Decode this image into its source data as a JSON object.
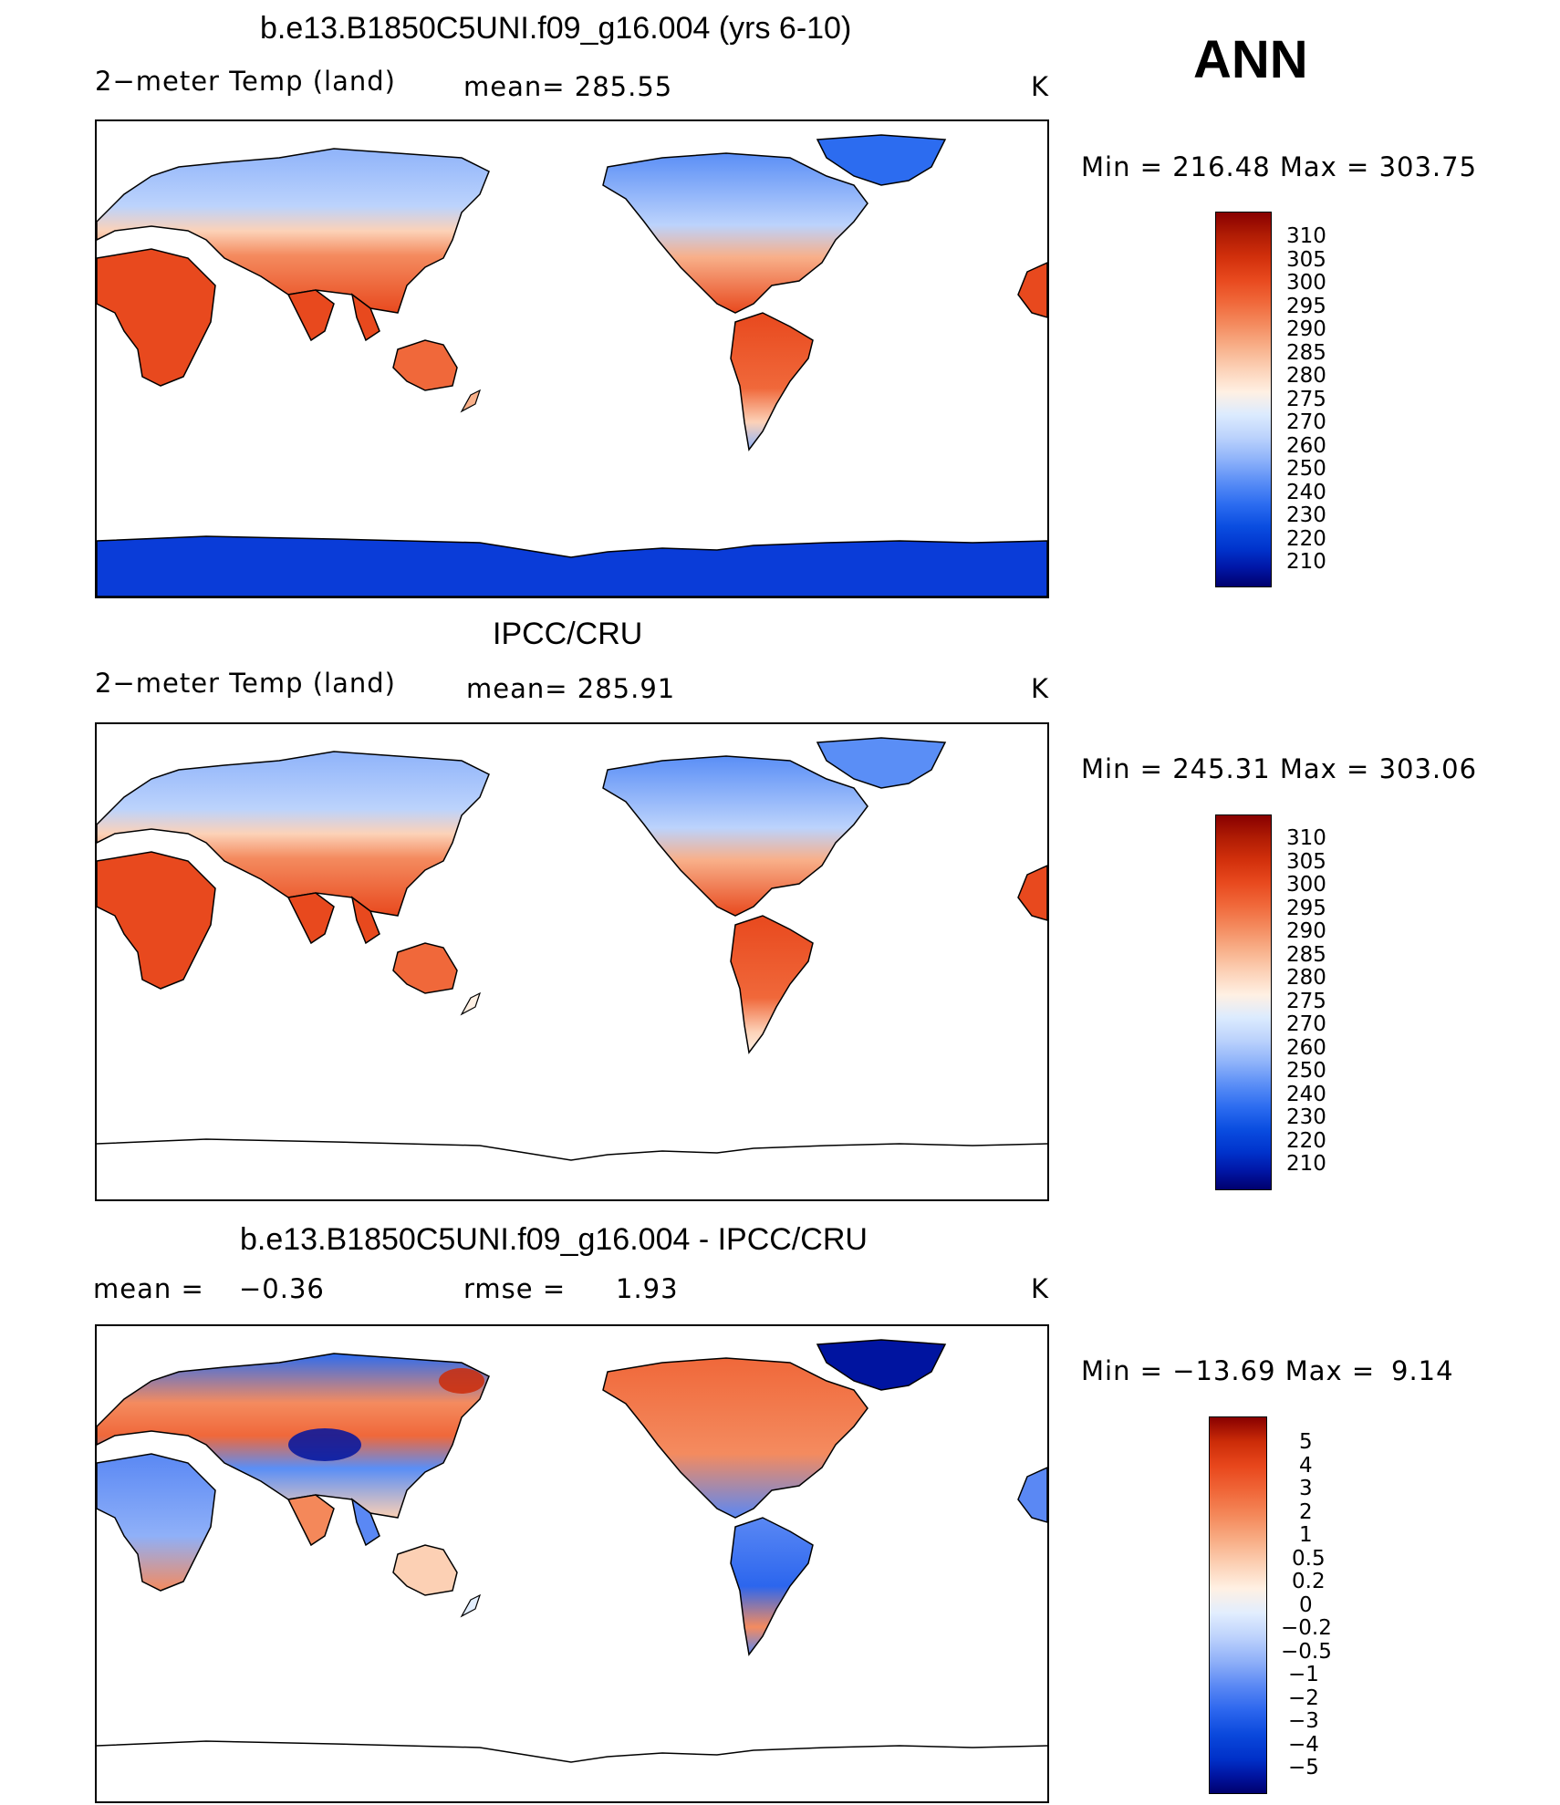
{
  "season": "ANN",
  "units": "K",
  "colors": {
    "abs_scale": [
      "#00006e",
      "#0016a6",
      "#0033cc",
      "#0a4de0",
      "#2c6cf0",
      "#5a8ef6",
      "#8fb3fa",
      "#bcd3fc",
      "#dcebfe",
      "#fff0e3",
      "#fcd2b8",
      "#f8b08a",
      "#f48b5f",
      "#f0683a",
      "#e8491e",
      "#d2300c",
      "#b01c04",
      "#880000"
    ],
    "diff_scale": [
      "#00006e",
      "#0014a0",
      "#0030c8",
      "#0a48dc",
      "#2c66ee",
      "#5a88f4",
      "#8fb0f8",
      "#bdd2fc",
      "#e2eefe",
      "#fff0e3",
      "#fcd0b4",
      "#f8ac84",
      "#f4885a",
      "#f06638",
      "#e8471c",
      "#cc2c08",
      "#880000"
    ],
    "land_outline": "#000000",
    "antarctica": "#0a3cd8"
  },
  "panels": [
    {
      "title": "b.e13.B1850C5UNI.f09_g16.004 (yrs 6-10)",
      "variable": "2−meter Temp (land)",
      "stat_line": "mean=  285.55",
      "units": "K",
      "minmax": "Min  =  216.48  Max  =  303.75",
      "colorbar_labels": [
        "310",
        "305",
        "300",
        "295",
        "290",
        "285",
        "280",
        "275",
        "270",
        "260",
        "250",
        "240",
        "230",
        "220",
        "210"
      ]
    },
    {
      "title": "IPCC/CRU",
      "variable": "2−meter Temp (land)",
      "stat_line": "mean=  285.91",
      "units": "K",
      "minmax": "Min  =  245.31  Max  =  303.06",
      "colorbar_labels": [
        "310",
        "305",
        "300",
        "295",
        "290",
        "285",
        "280",
        "275",
        "270",
        "260",
        "250",
        "240",
        "230",
        "220",
        "210"
      ]
    },
    {
      "title": "b.e13.B1850C5UNI.f09_g16.004 - IPCC/CRU",
      "variable": "mean  =",
      "mean_value": "−0.36",
      "rmse_label": "rmse  =",
      "rmse_value": "1.93",
      "units": "K",
      "minmax_label": "Min  =  −13.69  Max  =",
      "minmax_max": "9.14",
      "colorbar_labels": [
        "5",
        "4",
        "3",
        "2",
        "1",
        "0.5",
        "0.2",
        "0",
        "−0.2",
        "−0.5",
        "−1",
        "−2",
        "−3",
        "−4",
        "−5"
      ]
    }
  ]
}
